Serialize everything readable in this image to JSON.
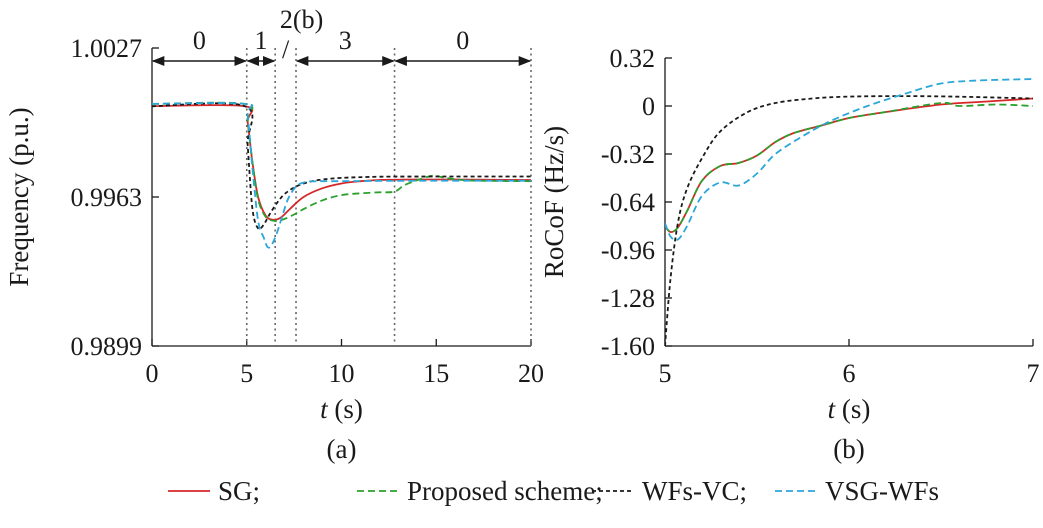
{
  "chart_data": [
    {
      "type": "line",
      "panel_label": "(a)",
      "xlabel": "s",
      "xlabel_var": "t",
      "ylabel": "Frequency (p.u.)",
      "xlim": [
        0,
        20
      ],
      "ylim": [
        0.9899,
        1.0027
      ],
      "xticks": [
        0,
        5,
        10,
        15,
        20
      ],
      "yticks": [
        0.9899,
        0.9963,
        1.0027
      ],
      "ytick_labels": [
        "0.9899",
        "0.9963",
        "1.0027"
      ],
      "phase_boundaries": [
        5,
        6.5,
        7.6,
        12.8,
        20
      ],
      "phases": [
        {
          "label": "0",
          "from": 0,
          "to": 5
        },
        {
          "label": "1",
          "from": 5,
          "to": 6.5
        },
        {
          "label": "2(b)",
          "from": 6.5,
          "to": 7.6
        },
        {
          "label": "3",
          "from": 7.6,
          "to": 12.8
        },
        {
          "label": "0",
          "from": 12.8,
          "to": 20
        }
      ],
      "phase2_slash": "/",
      "series": [
        {
          "name": "SG",
          "color": "#d62728",
          "dash": "solid",
          "x": [
            0,
            4.9,
            5.05,
            5.3,
            5.6,
            6.0,
            6.4,
            6.8,
            7.3,
            8.0,
            9.0,
            10.0,
            11.0,
            12.0,
            14.0,
            16.0,
            18.0,
            20.0
          ],
          "y": [
            1.0002,
            1.0002,
            0.9995,
            0.9978,
            0.9963,
            0.9955,
            0.99532,
            0.99542,
            0.9958,
            0.9963,
            0.99668,
            0.99688,
            0.99698,
            0.99703,
            0.99705,
            0.99705,
            0.99704,
            0.99703
          ]
        },
        {
          "name": "Proposed scheme",
          "color": "#2ca02c",
          "dash": "dash",
          "x": [
            0,
            4.9,
            5.05,
            5.3,
            5.6,
            6.0,
            6.5,
            7.0,
            7.5,
            8.0,
            9.0,
            10.0,
            11.0,
            12.0,
            12.8,
            13.3,
            14.0,
            14.8,
            15.5,
            16.5,
            18.0,
            20.0
          ],
          "y": [
            1.0003,
            1.0003,
            0.9996,
            0.9978,
            0.9962,
            0.99545,
            0.99527,
            0.99536,
            0.99555,
            0.99578,
            0.99616,
            0.99638,
            0.99646,
            0.9965,
            0.99653,
            0.9968,
            0.99702,
            0.99721,
            0.99712,
            0.99702,
            0.99699,
            0.99698
          ]
        },
        {
          "name": "WFs-VC",
          "color": "#1a1a1a",
          "dash": "short",
          "x": [
            0,
            4.9,
            5.05,
            5.3,
            5.6,
            5.9,
            6.2,
            6.6,
            7.0,
            7.6,
            8.3,
            9.0,
            10.0,
            12.0,
            15.0,
            18.0,
            20.0
          ],
          "y": [
            1.0002,
            1.0002,
            0.9985,
            0.9958,
            0.99495,
            0.99512,
            0.99555,
            0.99605,
            0.99643,
            0.99675,
            0.99695,
            0.99705,
            0.99712,
            0.99717,
            0.99718,
            0.99718,
            0.99718
          ]
        },
        {
          "name": "VSG-WFs",
          "color": "#2ba6d9",
          "dash": "dash",
          "x": [
            0,
            4.9,
            5.05,
            5.3,
            5.6,
            5.9,
            6.1,
            6.3,
            6.6,
            6.9,
            7.2,
            7.6,
            8.0,
            8.4,
            9.0,
            10.0,
            12.0,
            15.0,
            18.0,
            20.0
          ],
          "y": [
            1.0003,
            1.0003,
            0.9998,
            0.99755,
            0.99528,
            0.99455,
            0.99415,
            0.99422,
            0.99478,
            0.99555,
            0.99625,
            0.99675,
            0.99692,
            0.99697,
            0.99698,
            0.99698,
            0.99699,
            0.997,
            0.997,
            0.997
          ]
        }
      ]
    },
    {
      "type": "line",
      "panel_label": "(b)",
      "xlabel": "s",
      "xlabel_var": "t",
      "ylabel": "RoCoF (Hz/s)",
      "xlim": [
        5,
        7
      ],
      "ylim": [
        -1.6,
        0.32
      ],
      "xticks": [
        5,
        6,
        7
      ],
      "yticks": [
        0.32,
        0,
        -0.32,
        -0.64,
        -0.96,
        -1.28,
        -1.6
      ],
      "ytick_labels": [
        "0.32",
        "0",
        "-0.32",
        "-0.64",
        "-0.96",
        "-1.28",
        "-1.60"
      ],
      "series": [
        {
          "name": "SG",
          "color": "#d62728",
          "dash": "solid",
          "x": [
            5.0,
            5.03,
            5.07,
            5.12,
            5.2,
            5.3,
            5.4,
            5.5,
            5.6,
            5.7,
            5.85,
            6.0,
            6.2,
            6.5,
            6.75,
            7.0
          ],
          "y": [
            -0.8,
            -0.84,
            -0.81,
            -0.7,
            -0.5,
            -0.4,
            -0.38,
            -0.33,
            -0.24,
            -0.18,
            -0.13,
            -0.08,
            -0.04,
            0.01,
            0.03,
            0.05
          ]
        },
        {
          "name": "Proposed scheme",
          "color": "#2ca02c",
          "dash": "dash",
          "x": [
            5.0,
            5.03,
            5.07,
            5.12,
            5.2,
            5.3,
            5.4,
            5.5,
            5.6,
            5.7,
            5.85,
            6.0,
            6.2,
            6.5,
            6.6,
            6.8,
            7.0
          ],
          "y": [
            -0.8,
            -0.84,
            -0.81,
            -0.7,
            -0.5,
            -0.4,
            -0.38,
            -0.33,
            -0.24,
            -0.18,
            -0.13,
            -0.08,
            -0.04,
            0.02,
            0.0,
            0.01,
            0.0
          ]
        },
        {
          "name": "WFs-VC",
          "color": "#1a1a1a",
          "dash": "short",
          "x": [
            5.0,
            5.03,
            5.07,
            5.12,
            5.2,
            5.3,
            5.45,
            5.6,
            5.8,
            6.0,
            6.3,
            6.6,
            7.0
          ],
          "y": [
            -1.6,
            -1.15,
            -0.78,
            -0.55,
            -0.35,
            -0.17,
            -0.04,
            0.02,
            0.05,
            0.063,
            0.066,
            0.062,
            0.05
          ]
        },
        {
          "name": "VSG-WFs",
          "color": "#2ba6d9",
          "dash": "dash",
          "x": [
            5.0,
            5.03,
            5.07,
            5.12,
            5.2,
            5.3,
            5.4,
            5.5,
            5.6,
            5.75,
            5.9,
            6.1,
            6.3,
            6.5,
            6.7,
            7.0
          ],
          "y": [
            -0.78,
            -0.87,
            -0.89,
            -0.8,
            -0.6,
            -0.51,
            -0.53,
            -0.45,
            -0.32,
            -0.2,
            -0.1,
            0.0,
            0.08,
            0.15,
            0.17,
            0.18
          ]
        }
      ]
    }
  ],
  "legend": {
    "items": [
      {
        "label": "SG;",
        "color": "#d62728",
        "dash": "solid"
      },
      {
        "label": "Proposed scheme;",
        "color": "#2ca02c",
        "dash": "dash"
      },
      {
        "label": "WFs-VC;",
        "color": "#1a1a1a",
        "dash": "short"
      },
      {
        "label": "VSG-WFs",
        "color": "#2ba6d9",
        "dash": "dash"
      }
    ]
  }
}
